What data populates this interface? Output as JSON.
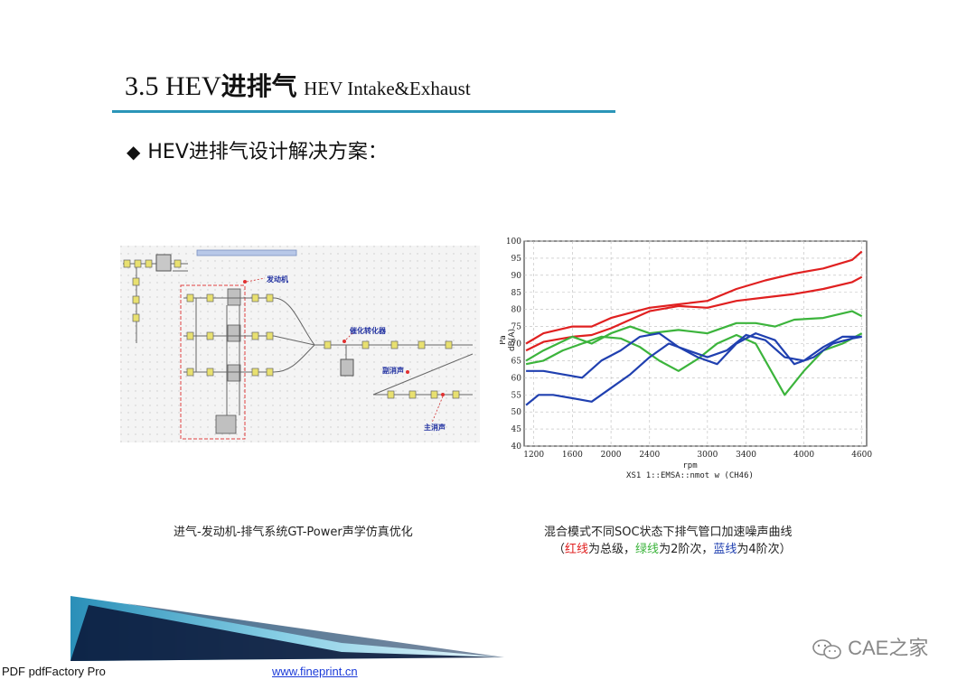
{
  "title": {
    "prefix": "3.5 HEV",
    "cn": "进排气",
    "en": "HEV Intake&Exhaust"
  },
  "accent_color": "#2b95b8",
  "bullet": {
    "icon": "diamond-icon",
    "text": "HEV进排气设计解决方案："
  },
  "diagram": {
    "labels": {
      "engine": "发动机",
      "catalyst": "催化转化器",
      "sub_muffler": "副消声",
      "main_muffler": "主消声"
    }
  },
  "captions": {
    "left": "进气-发动机-排气系统GT-Power声学仿真优化",
    "right_line1": "混合模式不同SOC状态下排气管口加速噪声曲线",
    "right_line2": {
      "open": "（",
      "red": "红线",
      "t1": "为总级，",
      "green": "绿线",
      "t2": "为2阶次，",
      "blue": "蓝线",
      "t3": "为4阶次）"
    }
  },
  "chart_data": {
    "type": "line",
    "xlabel": "rpm",
    "ylabel": "Pa\ndB(A)",
    "caption": "XS1 1::EMSA::nmot w (CH46)",
    "xlim": [
      1100,
      4650
    ],
    "ylim": [
      40,
      100
    ],
    "xticks": [
      1200,
      1600,
      2000,
      2400,
      3000,
      3400,
      4000,
      4600
    ],
    "yticks": [
      40,
      45,
      50,
      55,
      60,
      65,
      70,
      75,
      80,
      85,
      90,
      95,
      100
    ],
    "grid": true,
    "series": [
      {
        "color": "#e02020",
        "x": [
          1120,
          1300,
          1600,
          1800,
          2000,
          2200,
          2400,
          2700,
          3000,
          3300,
          3600,
          3900,
          4200,
          4500,
          4600
        ],
        "y": [
          70,
          73,
          75,
          75,
          77.5,
          79,
          80.5,
          81.5,
          82.5,
          86,
          88.5,
          90.5,
          92,
          94.5,
          97
        ]
      },
      {
        "color": "#e02020",
        "x": [
          1120,
          1300,
          1600,
          1800,
          2000,
          2200,
          2400,
          2700,
          3000,
          3300,
          3600,
          3900,
          4200,
          4500,
          4600
        ],
        "y": [
          68,
          70.5,
          72,
          72.5,
          74.5,
          77,
          79.5,
          81,
          80.5,
          82.5,
          83.5,
          84.5,
          86,
          88,
          89.5
        ]
      },
      {
        "color": "#3cb43c",
        "x": [
          1120,
          1300,
          1600,
          1800,
          2000,
          2200,
          2400,
          2700,
          3000,
          3300,
          3500,
          3700,
          3900,
          4200,
          4500,
          4600
        ],
        "y": [
          65,
          68,
          72,
          70,
          73,
          75,
          73,
          74,
          73,
          76,
          76,
          75,
          77,
          77.5,
          79.5,
          78
        ]
      },
      {
        "color": "#3cb43c",
        "x": [
          1120,
          1300,
          1500,
          1700,
          1900,
          2100,
          2300,
          2500,
          2700,
          2900,
          3100,
          3300,
          3500,
          3700,
          3800,
          4000,
          4200,
          4400,
          4600
        ],
        "y": [
          64,
          65,
          68,
          70,
          72,
          71.5,
          69,
          65,
          62,
          65.5,
          70,
          72.5,
          70,
          60,
          55,
          62,
          68,
          70,
          73
        ]
      },
      {
        "color": "#2040b0",
        "x": [
          1120,
          1300,
          1500,
          1700,
          1900,
          2100,
          2300,
          2500,
          2700,
          2900,
          3100,
          3300,
          3500,
          3700,
          3900,
          4100,
          4300,
          4500,
          4600
        ],
        "y": [
          62,
          62,
          61,
          60,
          65,
          68,
          72,
          73,
          69,
          66,
          64,
          70,
          73,
          71,
          64,
          66,
          70,
          71.5,
          72
        ]
      },
      {
        "color": "#2040b0",
        "x": [
          1120,
          1250,
          1400,
          1600,
          1800,
          2000,
          2200,
          2400,
          2600,
          2800,
          3000,
          3200,
          3400,
          3600,
          3800,
          4000,
          4200,
          4400,
          4600
        ],
        "y": [
          52,
          55,
          55,
          54,
          53,
          57,
          61,
          66,
          70,
          68,
          66,
          68,
          72.5,
          71,
          66,
          65,
          69,
          72,
          72
        ]
      }
    ]
  },
  "bottom": {
    "accent": "#3aa6c8"
  },
  "footer": {
    "left": "PDF  pdfFactory Pro",
    "link": "www.fineprint.cn"
  },
  "logo": {
    "text": "CAE之家",
    "icon": "wechat-icon"
  }
}
